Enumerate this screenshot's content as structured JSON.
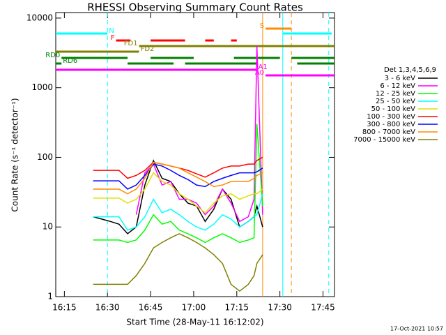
{
  "chart_data": {
    "type": "line",
    "title": "RHESSI Observing Summary Count Rates",
    "x_label": "Start Time (28-May-11 16:12:02)",
    "y_label": "Count Rate (s⁻¹ detector⁻¹)",
    "legend_title": "Det 1,3,4,5,6,9",
    "footer": "17-Oct-2021 10:57",
    "log_y": true,
    "xlim": [
      "16:12",
      "17:49"
    ],
    "xticks": [
      "16:15",
      "16:30",
      "16:45",
      "17:00",
      "17:15",
      "17:30",
      "17:45"
    ],
    "ylim": [
      1,
      12000
    ],
    "yticks": [
      1,
      10,
      100,
      1000,
      10000
    ],
    "x": [
      "16:25",
      "16:28",
      "16:31",
      "16:34",
      "16:37",
      "16:40",
      "16:43",
      "16:46",
      "16:49",
      "16:52",
      "16:55",
      "16:58",
      "17:01",
      "17:04",
      "17:07",
      "17:10",
      "17:13",
      "17:16",
      "17:19",
      "17:21",
      "17:22",
      "17:24"
    ],
    "series": [
      {
        "name": "3 - 6 keV",
        "color": "#000000",
        "values": [
          14,
          13,
          12,
          11,
          8,
          10,
          40,
          90,
          50,
          45,
          30,
          22,
          20,
          12,
          18,
          35,
          25,
          10,
          12,
          14,
          20,
          10
        ]
      },
      {
        "name": "6 - 12 keV",
        "color": "#ff00ff",
        "values": [
          null,
          null,
          null,
          null,
          null,
          15,
          60,
          80,
          40,
          45,
          25,
          25,
          22,
          15,
          20,
          35,
          22,
          12,
          14,
          25,
          4000,
          15
        ]
      },
      {
        "name": "12 - 25 keV",
        "color": "#00ff00",
        "values": [
          6.5,
          6.5,
          6.5,
          6.5,
          6,
          6.5,
          9,
          15,
          11,
          12,
          9,
          8,
          7,
          6,
          7,
          8,
          7,
          6,
          6.5,
          7,
          300,
          20
        ]
      },
      {
        "name": "25 - 50 keV",
        "color": "#00ffff",
        "values": [
          14,
          14,
          14,
          14,
          9,
          10,
          14,
          25,
          16,
          18,
          15,
          12,
          10,
          9,
          11,
          15,
          13,
          10,
          12,
          14,
          15,
          30
        ]
      },
      {
        "name": "50 - 100 keV",
        "color": "#e0e000",
        "values": [
          26,
          26,
          26,
          26,
          22,
          25,
          35,
          60,
          45,
          40,
          30,
          25,
          20,
          16,
          22,
          28,
          30,
          25,
          28,
          30,
          30,
          35
        ]
      },
      {
        "name": "100 - 300 keV",
        "color": "#ff0000",
        "values": [
          65,
          65,
          65,
          65,
          50,
          55,
          65,
          85,
          80,
          75,
          70,
          65,
          58,
          52,
          60,
          70,
          75,
          75,
          80,
          80,
          90,
          100
        ]
      },
      {
        "name": "300 - 800 keV",
        "color": "#0000ff",
        "values": [
          46,
          46,
          46,
          46,
          35,
          40,
          55,
          80,
          75,
          65,
          55,
          48,
          40,
          38,
          45,
          50,
          55,
          60,
          60,
          60,
          62,
          70
        ]
      },
      {
        "name": "800 - 7000 keV",
        "color": "#ff8c00",
        "values": [
          35,
          35,
          35,
          35,
          30,
          35,
          50,
          85,
          80,
          75,
          70,
          60,
          52,
          45,
          38,
          40,
          45,
          45,
          45,
          50,
          55,
          60
        ]
      },
      {
        "name": "7000 - 15000 keV",
        "color": "#808000",
        "values": [
          1.5,
          1.5,
          1.5,
          1.5,
          1.5,
          2,
          3,
          5,
          6,
          7,
          8,
          7,
          6,
          5,
          4,
          3,
          1.5,
          1.2,
          1.5,
          2,
          3,
          4
        ]
      }
    ],
    "flags": [
      {
        "label": "N",
        "color": "#00ffff",
        "segments": [
          [
            "16:12",
            "16:30"
          ],
          [
            "17:31",
            "17:48"
          ]
        ]
      },
      {
        "label": "S",
        "color": "#ff8c00",
        "segments": [
          [
            "17:25",
            "17:34"
          ]
        ]
      },
      {
        "label": "F",
        "color": "#ff0000",
        "segments": [
          [
            "16:33",
            "16:38"
          ],
          [
            "16:45",
            "16:57"
          ],
          [
            "17:04",
            "17:07"
          ],
          [
            "17:13",
            "17:15"
          ]
        ]
      },
      {
        "label": "FD1",
        "color": "#808000",
        "segments": [
          [
            "16:41",
            "17:49"
          ]
        ]
      },
      {
        "label": "FD2",
        "color": "#808000",
        "segments": [
          [
            "16:12",
            "16:41"
          ]
        ]
      },
      {
        "label": "RD0",
        "color": "#008000",
        "segments": [
          [
            "16:14",
            "16:37"
          ],
          [
            "16:45",
            "17:00"
          ],
          [
            "17:14",
            "17:30"
          ],
          [
            "17:34",
            "17:49"
          ]
        ]
      },
      {
        "label": "RD6",
        "color": "#008000",
        "segments": [
          [
            "16:12",
            "16:14"
          ],
          [
            "16:37",
            "16:53"
          ],
          [
            "16:57",
            "17:22"
          ],
          [
            "17:36",
            "17:49"
          ]
        ]
      },
      {
        "label": "A1",
        "color": "#ff00ff",
        "segments": [
          [
            "16:12",
            "17:22"
          ]
        ]
      },
      {
        "label": "A0",
        "color": "#ff00ff",
        "segments": [
          [
            "17:25",
            "17:49"
          ]
        ]
      }
    ],
    "vlines": [
      {
        "time": "16:30",
        "color": "#00ffff",
        "dashed": true
      },
      {
        "time": "17:47",
        "color": "#00ffff",
        "dashed": true
      },
      {
        "time": "17:31",
        "color": "#00ffff",
        "dashed": false
      },
      {
        "time": "17:24",
        "color": "#ff8c00",
        "dashed": false
      },
      {
        "time": "17:34",
        "color": "#ff8c00",
        "dashed": true
      }
    ]
  }
}
